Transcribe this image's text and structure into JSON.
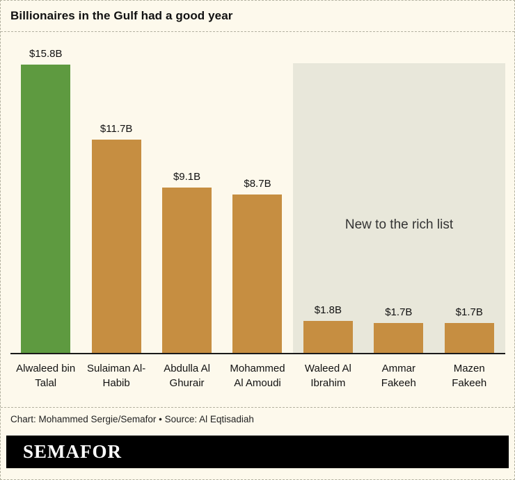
{
  "chart_data": {
    "type": "bar",
    "title": "Billionaires in the Gulf had a good year",
    "categories": [
      "Alwaleed bin Talal",
      "Sulaiman Al-Habib",
      "Abdulla Al Ghurair",
      "Mohammed Al Amoudi",
      "Waleed Al Ibrahim",
      "Ammar Fakeeh",
      "Mazen Fakeeh"
    ],
    "values": [
      15.8,
      11.7,
      9.1,
      8.7,
      1.8,
      1.7,
      1.7
    ],
    "value_labels": [
      "$15.8B",
      "$11.7B",
      "$9.1B",
      "$8.7B",
      "$1.8B",
      "$1.7B",
      "$1.7B"
    ],
    "bar_colors": [
      "#5e9a40",
      "#c68e41",
      "#c68e41",
      "#c68e41",
      "#c68e41",
      "#c68e41",
      "#c68e41"
    ],
    "annotation": "New to the rich list",
    "annotation_covers_categories": [
      "Waleed Al Ibrahim",
      "Ammar Fakeeh",
      "Mazen Fakeeh"
    ],
    "ylim": [
      0,
      17.6
    ],
    "grid": false,
    "legend": null
  },
  "colors": {
    "background": "#fdf9ec",
    "highlight_region": "#e8e7da",
    "green_bar": "#5e9a40",
    "gold_bar": "#c68e41",
    "axis": "#1a1a1a",
    "dashed_border": "#b3b1a0",
    "logo_background": "#000000",
    "logo_text": "#ffffff"
  },
  "footer": {
    "credit": "Chart: Mohammed Sergie/Semafor • Source: Al Eqtisadiah",
    "logo": "SEMAFOR"
  }
}
